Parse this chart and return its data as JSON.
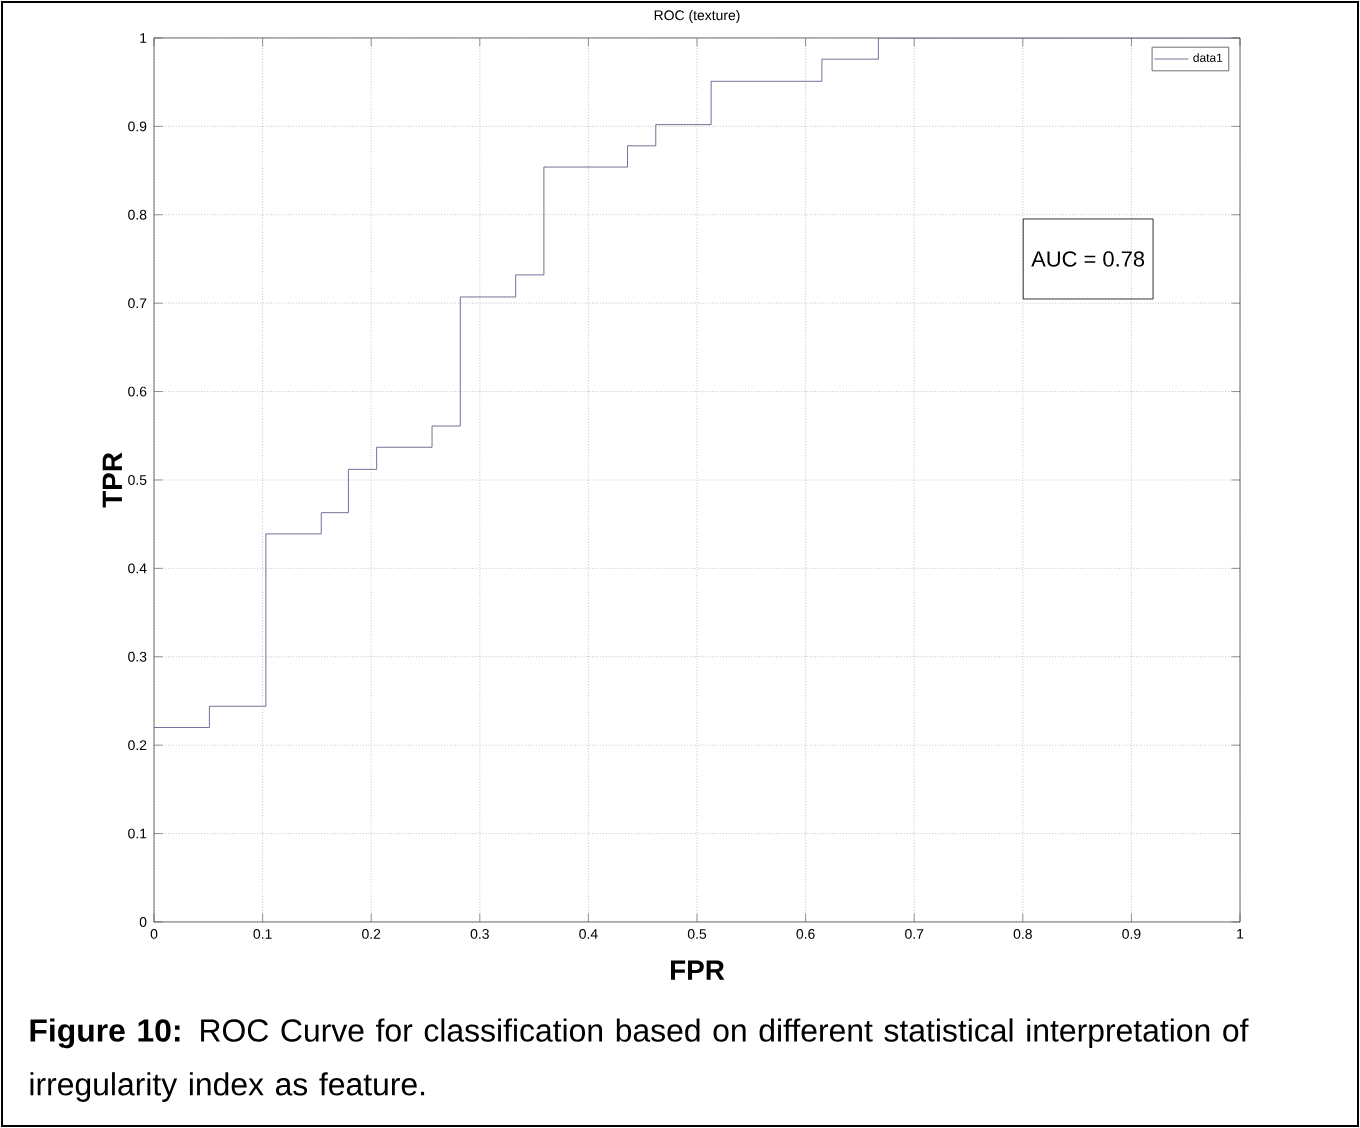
{
  "chart_data": {
    "type": "step",
    "title": "ROC (texture)",
    "xlabel": "FPR",
    "ylabel": "TPR",
    "x": [
      0,
      0.051,
      0.103,
      0.154,
      0.179,
      0.205,
      0.256,
      0.282,
      0.333,
      0.359,
      0.436,
      0.462,
      0.513,
      0.615,
      0.667,
      1
    ],
    "series": [
      {
        "name": "data1",
        "color": "#4b4f7d",
        "values": [
          0.22,
          0.244,
          0.439,
          0.463,
          0.512,
          0.537,
          0.561,
          0.707,
          0.732,
          0.854,
          0.878,
          0.902,
          0.951,
          0.976,
          1,
          1
        ]
      }
    ],
    "xlim": [
      0,
      1
    ],
    "ylim": [
      0,
      1
    ],
    "xticks": [
      0,
      0.1,
      0.2,
      0.3,
      0.4,
      0.5,
      0.6,
      0.7,
      0.8,
      0.9,
      1
    ],
    "yticks": [
      0,
      0.1,
      0.2,
      0.3,
      0.4,
      0.5,
      0.6,
      0.7,
      0.8,
      0.9,
      1
    ],
    "grid": true,
    "legend": "top right",
    "marker": "none",
    "line_style": "solid",
    "annotations": [
      "AUC = 0.78",
      "**Figure 10:** ROC Curve for classification based on different statistical interpretation of irregularity index as feature."
    ]
  }
}
